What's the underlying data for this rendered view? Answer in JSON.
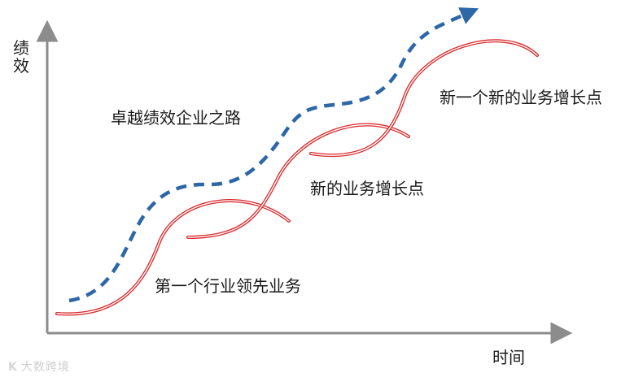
{
  "axes": {
    "y_label": "绩效",
    "x_label": "时间"
  },
  "labels": {
    "path_label": "卓越绩效企业之路",
    "curve1_label": "第一个行业领先业务",
    "curve2_label": "新的业务增长点",
    "curve3_label": "新一个新的业务增长点"
  },
  "watermark": {
    "logo": "K",
    "text": "大数跨境"
  },
  "colors": {
    "axis": "#8c8c8c",
    "dashed_path": "#2e67a8",
    "curve_outer": "#d9282a",
    "curve_inner": "#ffffff"
  }
}
